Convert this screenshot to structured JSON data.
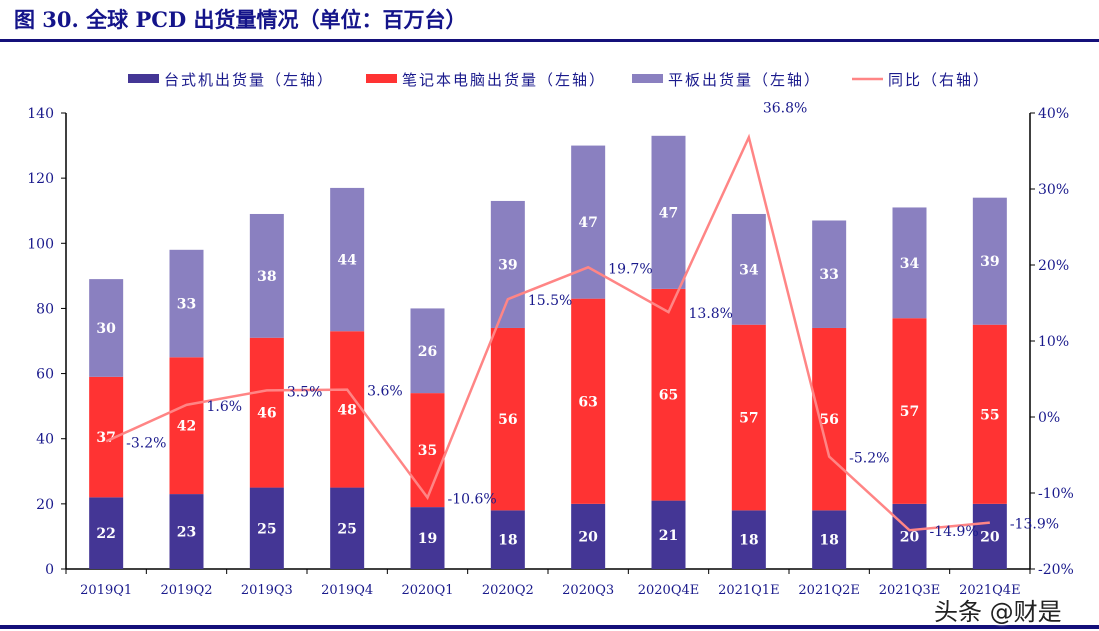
{
  "title": "图 30. 全球 PCD 出货量情况（单位：百万台）",
  "watermark": "头条 @财是",
  "chart_data": {
    "type": "bar",
    "stacked": true,
    "categories": [
      "2019Q1",
      "2019Q2",
      "2019Q3",
      "2019Q4",
      "2020Q1",
      "2020Q2",
      "2020Q3",
      "2020Q4E",
      "2021Q1E",
      "2021Q2E",
      "2021Q3E",
      "2021Q4E"
    ],
    "series": [
      {
        "name": "台式机出货量（左轴）",
        "type": "bar",
        "axis": "left",
        "color": "#443695",
        "values": [
          22,
          23,
          25,
          25,
          19,
          18,
          20,
          21,
          18,
          18,
          20,
          20
        ]
      },
      {
        "name": "笔记本电脑出货量（左轴）",
        "type": "bar",
        "axis": "left",
        "color": "#FF3333",
        "values": [
          37,
          42,
          46,
          48,
          35,
          56,
          63,
          65,
          57,
          56,
          57,
          55
        ]
      },
      {
        "name": "平板出货量（左轴）",
        "type": "bar",
        "axis": "left",
        "color": "#8A80C0",
        "values": [
          30,
          33,
          38,
          44,
          26,
          39,
          47,
          47,
          34,
          33,
          34,
          39
        ]
      },
      {
        "name": "同比（右轴）",
        "type": "line",
        "axis": "right",
        "color": "#FF8585",
        "values": [
          -3.2,
          1.6,
          3.5,
          3.6,
          -10.6,
          15.5,
          19.7,
          13.8,
          36.8,
          -5.2,
          -14.9,
          -13.9
        ],
        "labels": [
          "-3.2%",
          "1.6%",
          "3.5%",
          "3.6%",
          "-10.6%",
          "15.5%",
          "19.7%",
          "13.8%",
          "36.8%",
          "-5.2%",
          "-14.9%",
          "-13.9%"
        ]
      }
    ],
    "y_left": {
      "range": [
        0,
        140
      ],
      "ticks": [
        "0",
        "20",
        "40",
        "60",
        "80",
        "100",
        "120",
        "140"
      ]
    },
    "y_right": {
      "range": [
        -20,
        40
      ],
      "ticks": [
        "-20%",
        "-10%",
        "0%",
        "10%",
        "20%",
        "30%",
        "40%"
      ]
    },
    "legend": "top",
    "grid": false
  }
}
